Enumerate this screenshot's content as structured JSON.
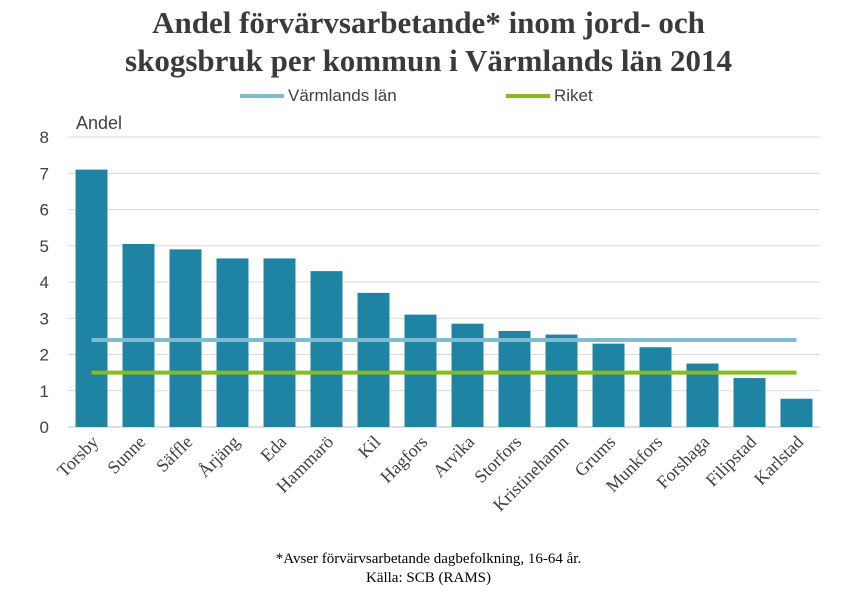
{
  "chart_data": {
    "type": "bar",
    "title_lines": [
      "Andel förvärvsarbetande* inom jord- och",
      "skogsbruk per kommun i Värmlands län 2014"
    ],
    "ylabel": "Andel",
    "xlabel": "",
    "ylim": [
      0,
      8
    ],
    "yticks": [
      0,
      1,
      2,
      3,
      4,
      5,
      6,
      7,
      8
    ],
    "grid": true,
    "categories": [
      "Torsby",
      "Sunne",
      "Säffle",
      "Årjäng",
      "Eda",
      "Hammarö",
      "Kil",
      "Hagfors",
      "Arvika",
      "Storfors",
      "Kristinehamn",
      "Grums",
      "Munkfors",
      "Forshaga",
      "Filipstad",
      "Karlstad"
    ],
    "values": [
      7.1,
      5.05,
      4.9,
      4.65,
      4.65,
      4.3,
      3.7,
      3.1,
      2.85,
      2.65,
      2.55,
      2.3,
      2.2,
      1.75,
      1.35,
      0.78
    ],
    "bar_color": "#1f83a3",
    "reference_lines": [
      {
        "name": "Värmlands län",
        "value": 2.4,
        "color": "#7ebccf"
      },
      {
        "name": "Riket",
        "value": 1.5,
        "color": "#84bd1c"
      }
    ],
    "legend_position": "top",
    "footnote_lines": [
      "*Avser förvärvsarbetande dagbefolkning, 16-64 år.",
      "Källa: SCB (RAMS)"
    ]
  }
}
